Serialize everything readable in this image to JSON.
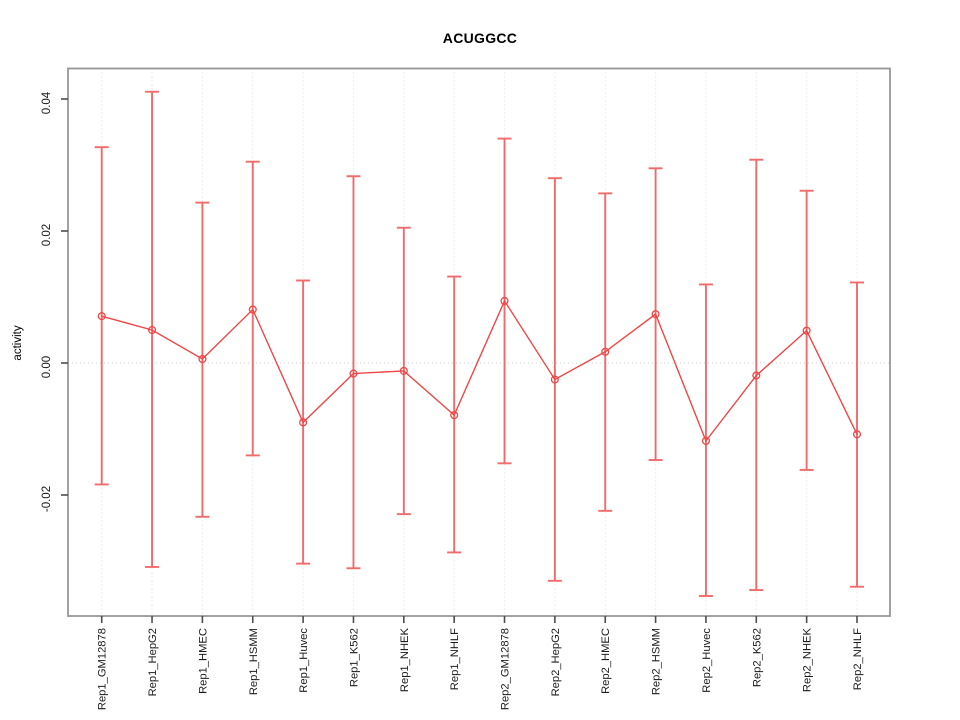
{
  "chart_data": {
    "type": "line",
    "title": "ACUGGCC",
    "ylabel": "activity",
    "xlabel": "",
    "legend": "none",
    "grid": "vertical dotted gridline per category; dotted horizontal line at y=0",
    "ylim": [
      -0.0383,
      0.0447
    ],
    "yticks": [
      -0.02,
      0.0,
      0.02,
      0.04
    ],
    "ytick_labels": [
      "-0.02",
      "0.00",
      "0.02",
      "0.04"
    ],
    "categories": [
      "Rep1_GM12878",
      "Rep1_HepG2",
      "Rep1_HMEC",
      "Rep1_HSMM",
      "Rep1_Huvec",
      "Rep1_K562",
      "Rep1_NHEK",
      "Rep1_NHLF",
      "Rep2_GM12878",
      "Rep2_HepG2",
      "Rep2_HMEC",
      "Rep2_HSMM",
      "Rep2_Huvec",
      "Rep2_K562",
      "Rep2_NHEK",
      "Rep2_NHLF"
    ],
    "series": [
      {
        "name": "activity",
        "marker": "open-circle",
        "values": [
          0.0071,
          0.005,
          0.0006,
          0.0081,
          -0.009,
          -0.0016,
          -0.0012,
          -0.0079,
          0.0094,
          -0.0025,
          0.0017,
          0.0074,
          -0.0118,
          -0.0019,
          0.0049,
          -0.0108
        ],
        "upper": [
          0.0327,
          0.0411,
          0.0243,
          0.0305,
          0.0125,
          0.0283,
          0.0205,
          0.0131,
          0.034,
          0.028,
          0.0257,
          0.0295,
          0.0119,
          0.0308,
          0.0261,
          0.0122
        ],
        "lower": [
          -0.0184,
          -0.0309,
          -0.0233,
          -0.014,
          -0.0304,
          -0.0311,
          -0.0229,
          -0.0287,
          -0.0152,
          -0.033,
          -0.0224,
          -0.0147,
          -0.0353,
          -0.0344,
          -0.0162,
          -0.0339
        ]
      }
    ],
    "colors": {
      "errorbar": "#f26a6a",
      "line": "#ee4747",
      "marker": "#ee4747",
      "gridline": "#e0e0e0",
      "zero_line": "#dadada",
      "border": "#979797",
      "tick": "#4d4d4d",
      "text": "#1c1c1c"
    }
  }
}
